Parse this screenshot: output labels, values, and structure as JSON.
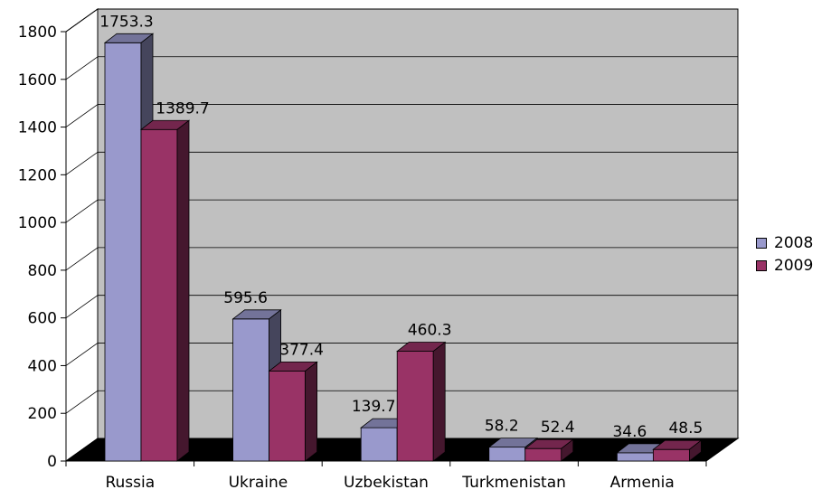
{
  "chart_data": {
    "type": "bar",
    "title": "",
    "xlabel": "",
    "ylabel": "",
    "categories": [
      "Russia",
      "Ukraine",
      "Uzbekistan",
      "Turkmenistan",
      "Armenia"
    ],
    "series": [
      {
        "name": "2008",
        "color": "#9999cc",
        "values": [
          1753.3,
          595.6,
          139.7,
          58.2,
          34.6
        ]
      },
      {
        "name": "2009",
        "color": "#993366",
        "values": [
          1389.7,
          377.4,
          460.3,
          52.4,
          48.5
        ]
      }
    ],
    "yticks": [
      0,
      200,
      400,
      600,
      800,
      1000,
      1200,
      1400,
      1600,
      1800
    ],
    "ylim": [
      0,
      1800
    ],
    "grid": true,
    "legend_position": "right",
    "wall_color": "#c0c0c0",
    "floor_color": "#000000"
  }
}
